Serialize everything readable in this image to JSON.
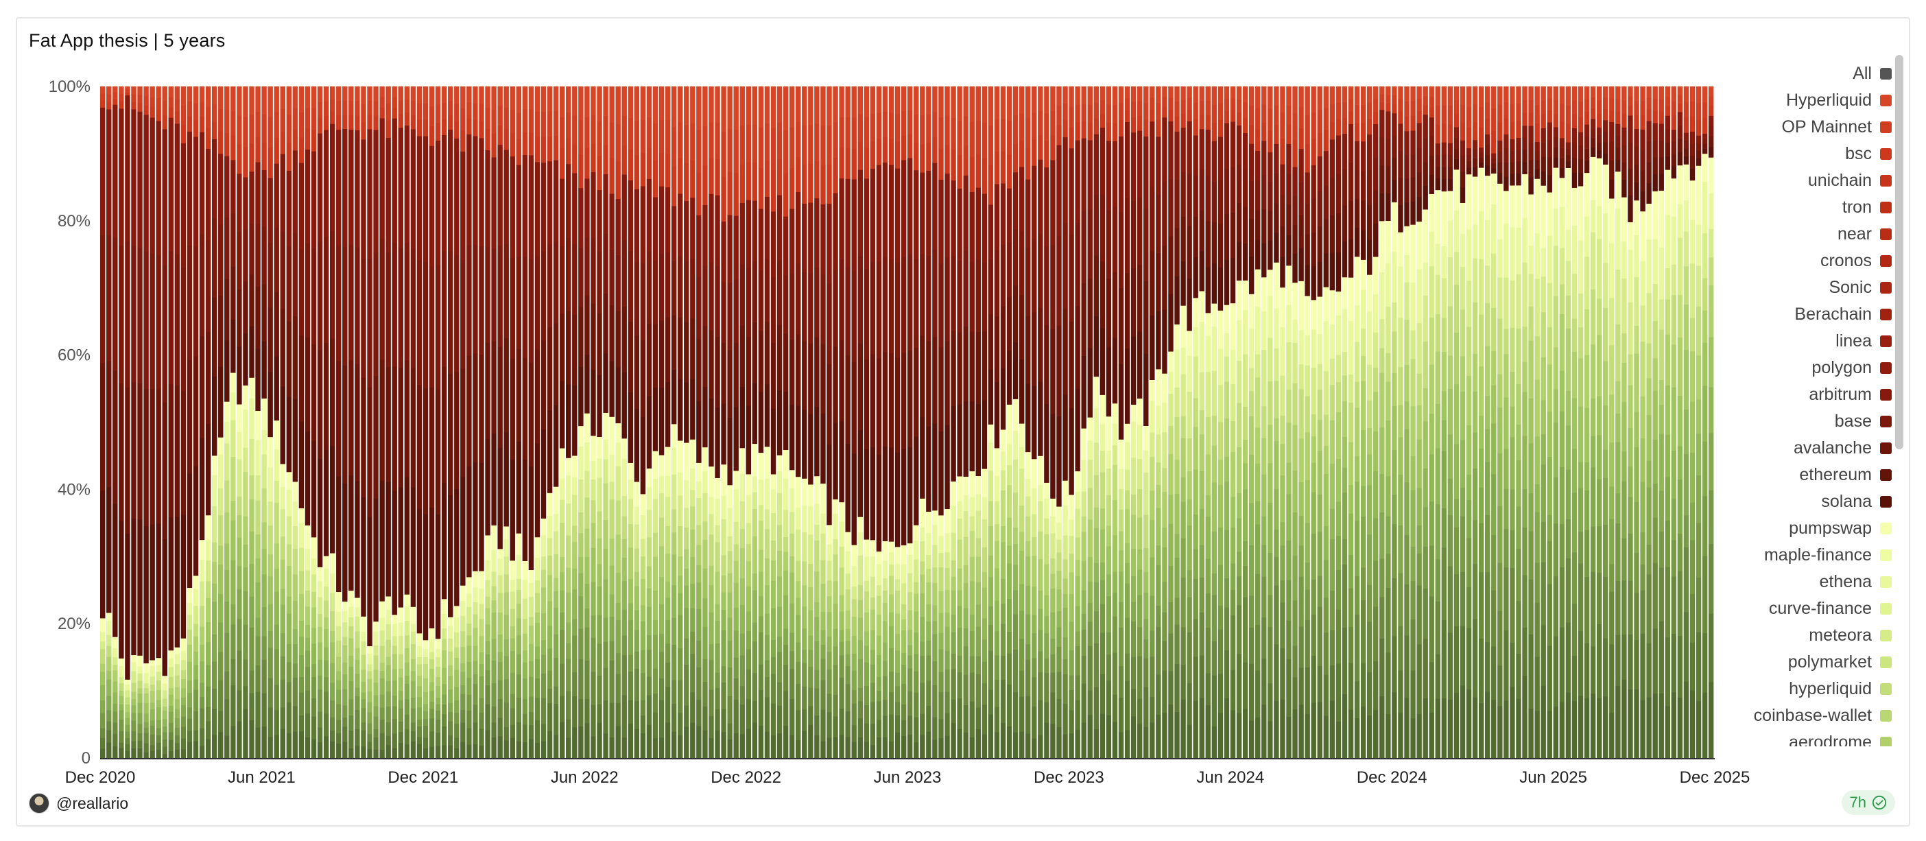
{
  "title": "Fat App thesis | 5 years",
  "footer": {
    "username": "@reallario",
    "freshness": "7h"
  },
  "colors": {
    "accent": "#2a9a48",
    "chains": [
      "#5a1208",
      "#6e150a",
      "#7c180c",
      "#871a0d",
      "#901c0f",
      "#9a1f10",
      "#a22211",
      "#aa2512",
      "#b22813",
      "#b92c15",
      "#c03017",
      "#c6341a",
      "#cc391d",
      "#d13f22",
      "#d64526"
    ],
    "apps": [
      "#526b2f",
      "#5e7b36",
      "#6b8a3d",
      "#789a45",
      "#85a94d",
      "#92b755",
      "#a0c45e",
      "#b0d06a",
      "#c3de79",
      "#d6ec88",
      "#e8f89a",
      "#f5ffae"
    ]
  },
  "legend": [
    {
      "label": "All",
      "color": "#555555",
      "icon": "square-swatch"
    },
    {
      "label": "Hyperliquid",
      "color": "#d64526"
    },
    {
      "label": "OP Mainnet",
      "color": "#d13f22"
    },
    {
      "label": "bsc",
      "color": "#cc391d"
    },
    {
      "label": "unichain",
      "color": "#c6341a"
    },
    {
      "label": "tron",
      "color": "#c03017"
    },
    {
      "label": "near",
      "color": "#b92c15"
    },
    {
      "label": "cronos",
      "color": "#b22813"
    },
    {
      "label": "Sonic",
      "color": "#aa2512"
    },
    {
      "label": "Berachain",
      "color": "#a22211"
    },
    {
      "label": "linea",
      "color": "#9a1f10"
    },
    {
      "label": "polygon",
      "color": "#901c0f"
    },
    {
      "label": "arbitrum",
      "color": "#871a0d"
    },
    {
      "label": "base",
      "color": "#7c180c"
    },
    {
      "label": "avalanche",
      "color": "#6e150a"
    },
    {
      "label": "ethereum",
      "color": "#641309"
    },
    {
      "label": "solana",
      "color": "#5a1208"
    },
    {
      "label": "pumpswap",
      "color": "#f5ffae"
    },
    {
      "label": "maple-finance",
      "color": "#eefca2"
    },
    {
      "label": "ethena",
      "color": "#e8f89a"
    },
    {
      "label": "curve-finance",
      "color": "#e0f491"
    },
    {
      "label": "meteora",
      "color": "#d6ec88"
    },
    {
      "label": "polymarket",
      "color": "#cce680"
    },
    {
      "label": "hyperliquid",
      "color": "#c3de79"
    },
    {
      "label": "coinbase-wallet",
      "color": "#b9d772"
    },
    {
      "label": "aerodrome",
      "color": "#b0d06a"
    }
  ],
  "chart_data": {
    "type": "bar",
    "stacked": true,
    "normalized_percent": true,
    "title": "Fat App thesis | 5 years",
    "x_range": [
      "Dec 2020",
      "Dec 2025"
    ],
    "x_ticks": [
      "Dec 2020",
      "Jun 2021",
      "Dec 2021",
      "Jun 2022",
      "Dec 2022",
      "Jun 2023",
      "Dec 2023",
      "Jun 2024",
      "Dec 2024",
      "Jun 2025",
      "Dec 2025"
    ],
    "y_ticks": [
      "0",
      "20%",
      "40%",
      "60%",
      "80%",
      "100%"
    ],
    "ylim": [
      0,
      100
    ],
    "bars_per_tick_interval": 26,
    "grid": false,
    "legend_position": "right",
    "series_groups": [
      {
        "name": "apps (green)",
        "role": "cumulative share of app-layer series"
      },
      {
        "name": "chains (red)",
        "role": "remaining share of chain-layer series"
      }
    ],
    "app_share_keypoints": [
      {
        "x": "Dec 2020",
        "value": 24
      },
      {
        "x": "Jan 2021",
        "value": 13
      },
      {
        "x": "Mar 2021",
        "value": 16
      },
      {
        "x": "Apr 2021",
        "value": 37
      },
      {
        "x": "May 2021",
        "value": 56
      },
      {
        "x": "Jun 2021",
        "value": 53
      },
      {
        "x": "Jul 2021",
        "value": 44
      },
      {
        "x": "Aug 2021",
        "value": 32
      },
      {
        "x": "Oct 2021",
        "value": 19
      },
      {
        "x": "Nov 2021",
        "value": 24
      },
      {
        "x": "Dec 2021",
        "value": 18
      },
      {
        "x": "Jan 2022",
        "value": 22
      },
      {
        "x": "Mar 2022",
        "value": 34
      },
      {
        "x": "Apr 2022",
        "value": 28
      },
      {
        "x": "May 2022",
        "value": 44
      },
      {
        "x": "Jul 2022",
        "value": 52
      },
      {
        "x": "Aug 2022",
        "value": 40
      },
      {
        "x": "Sep 2022",
        "value": 48
      },
      {
        "x": "Nov 2022",
        "value": 43
      },
      {
        "x": "Jan 2023",
        "value": 45
      },
      {
        "x": "Mar 2023",
        "value": 38
      },
      {
        "x": "May 2023",
        "value": 30
      },
      {
        "x": "Jul 2023",
        "value": 38
      },
      {
        "x": "Sep 2023",
        "value": 46
      },
      {
        "x": "Oct 2023",
        "value": 54
      },
      {
        "x": "Nov 2023",
        "value": 42
      },
      {
        "x": "Dec 2023",
        "value": 38
      },
      {
        "x": "Jan 2024",
        "value": 57
      },
      {
        "x": "Feb 2024",
        "value": 49
      },
      {
        "x": "Mar 2024",
        "value": 52
      },
      {
        "x": "Apr 2024",
        "value": 65
      },
      {
        "x": "Jun 2024",
        "value": 69
      },
      {
        "x": "Aug 2024",
        "value": 73
      },
      {
        "x": "Sep 2024",
        "value": 66
      },
      {
        "x": "Oct 2024",
        "value": 70
      },
      {
        "x": "Nov 2024",
        "value": 73
      },
      {
        "x": "Dec 2024",
        "value": 80
      },
      {
        "x": "Feb 2025",
        "value": 85
      },
      {
        "x": "Apr 2025",
        "value": 85
      },
      {
        "x": "Jun 2025",
        "value": 86
      },
      {
        "x": "Aug 2025",
        "value": 87
      },
      {
        "x": "Sep 2025",
        "value": 81
      },
      {
        "x": "Oct 2025",
        "value": 87
      },
      {
        "x": "Nov 2025",
        "value": 89
      },
      {
        "x": "Dec 2025",
        "value": 89
      }
    ],
    "chain_dark_share_keypoints": [
      {
        "x": "Dec 2020",
        "value": 99
      },
      {
        "x": "Mar 2021",
        "value": 93
      },
      {
        "x": "Jun 2021",
        "value": 87
      },
      {
        "x": "Sep 2021",
        "value": 94
      },
      {
        "x": "Dec 2021",
        "value": 93
      },
      {
        "x": "Mar 2022",
        "value": 90
      },
      {
        "x": "Jun 2022",
        "value": 86
      },
      {
        "x": "Sep 2022",
        "value": 84
      },
      {
        "x": "Dec 2022",
        "value": 81
      },
      {
        "x": "Mar 2023",
        "value": 84
      },
      {
        "x": "Jun 2023",
        "value": 90
      },
      {
        "x": "Sep 2023",
        "value": 84
      },
      {
        "x": "Dec 2023",
        "value": 91
      },
      {
        "x": "Mar 2024",
        "value": 94
      },
      {
        "x": "Jun 2024",
        "value": 93
      },
      {
        "x": "Sep 2024",
        "value": 89
      },
      {
        "x": "Dec 2024",
        "value": 96
      },
      {
        "x": "Mar 2025",
        "value": 91
      },
      {
        "x": "Jun 2025",
        "value": 93
      },
      {
        "x": "Sep 2025",
        "value": 95
      },
      {
        "x": "Dec 2025",
        "value": 94
      }
    ]
  }
}
